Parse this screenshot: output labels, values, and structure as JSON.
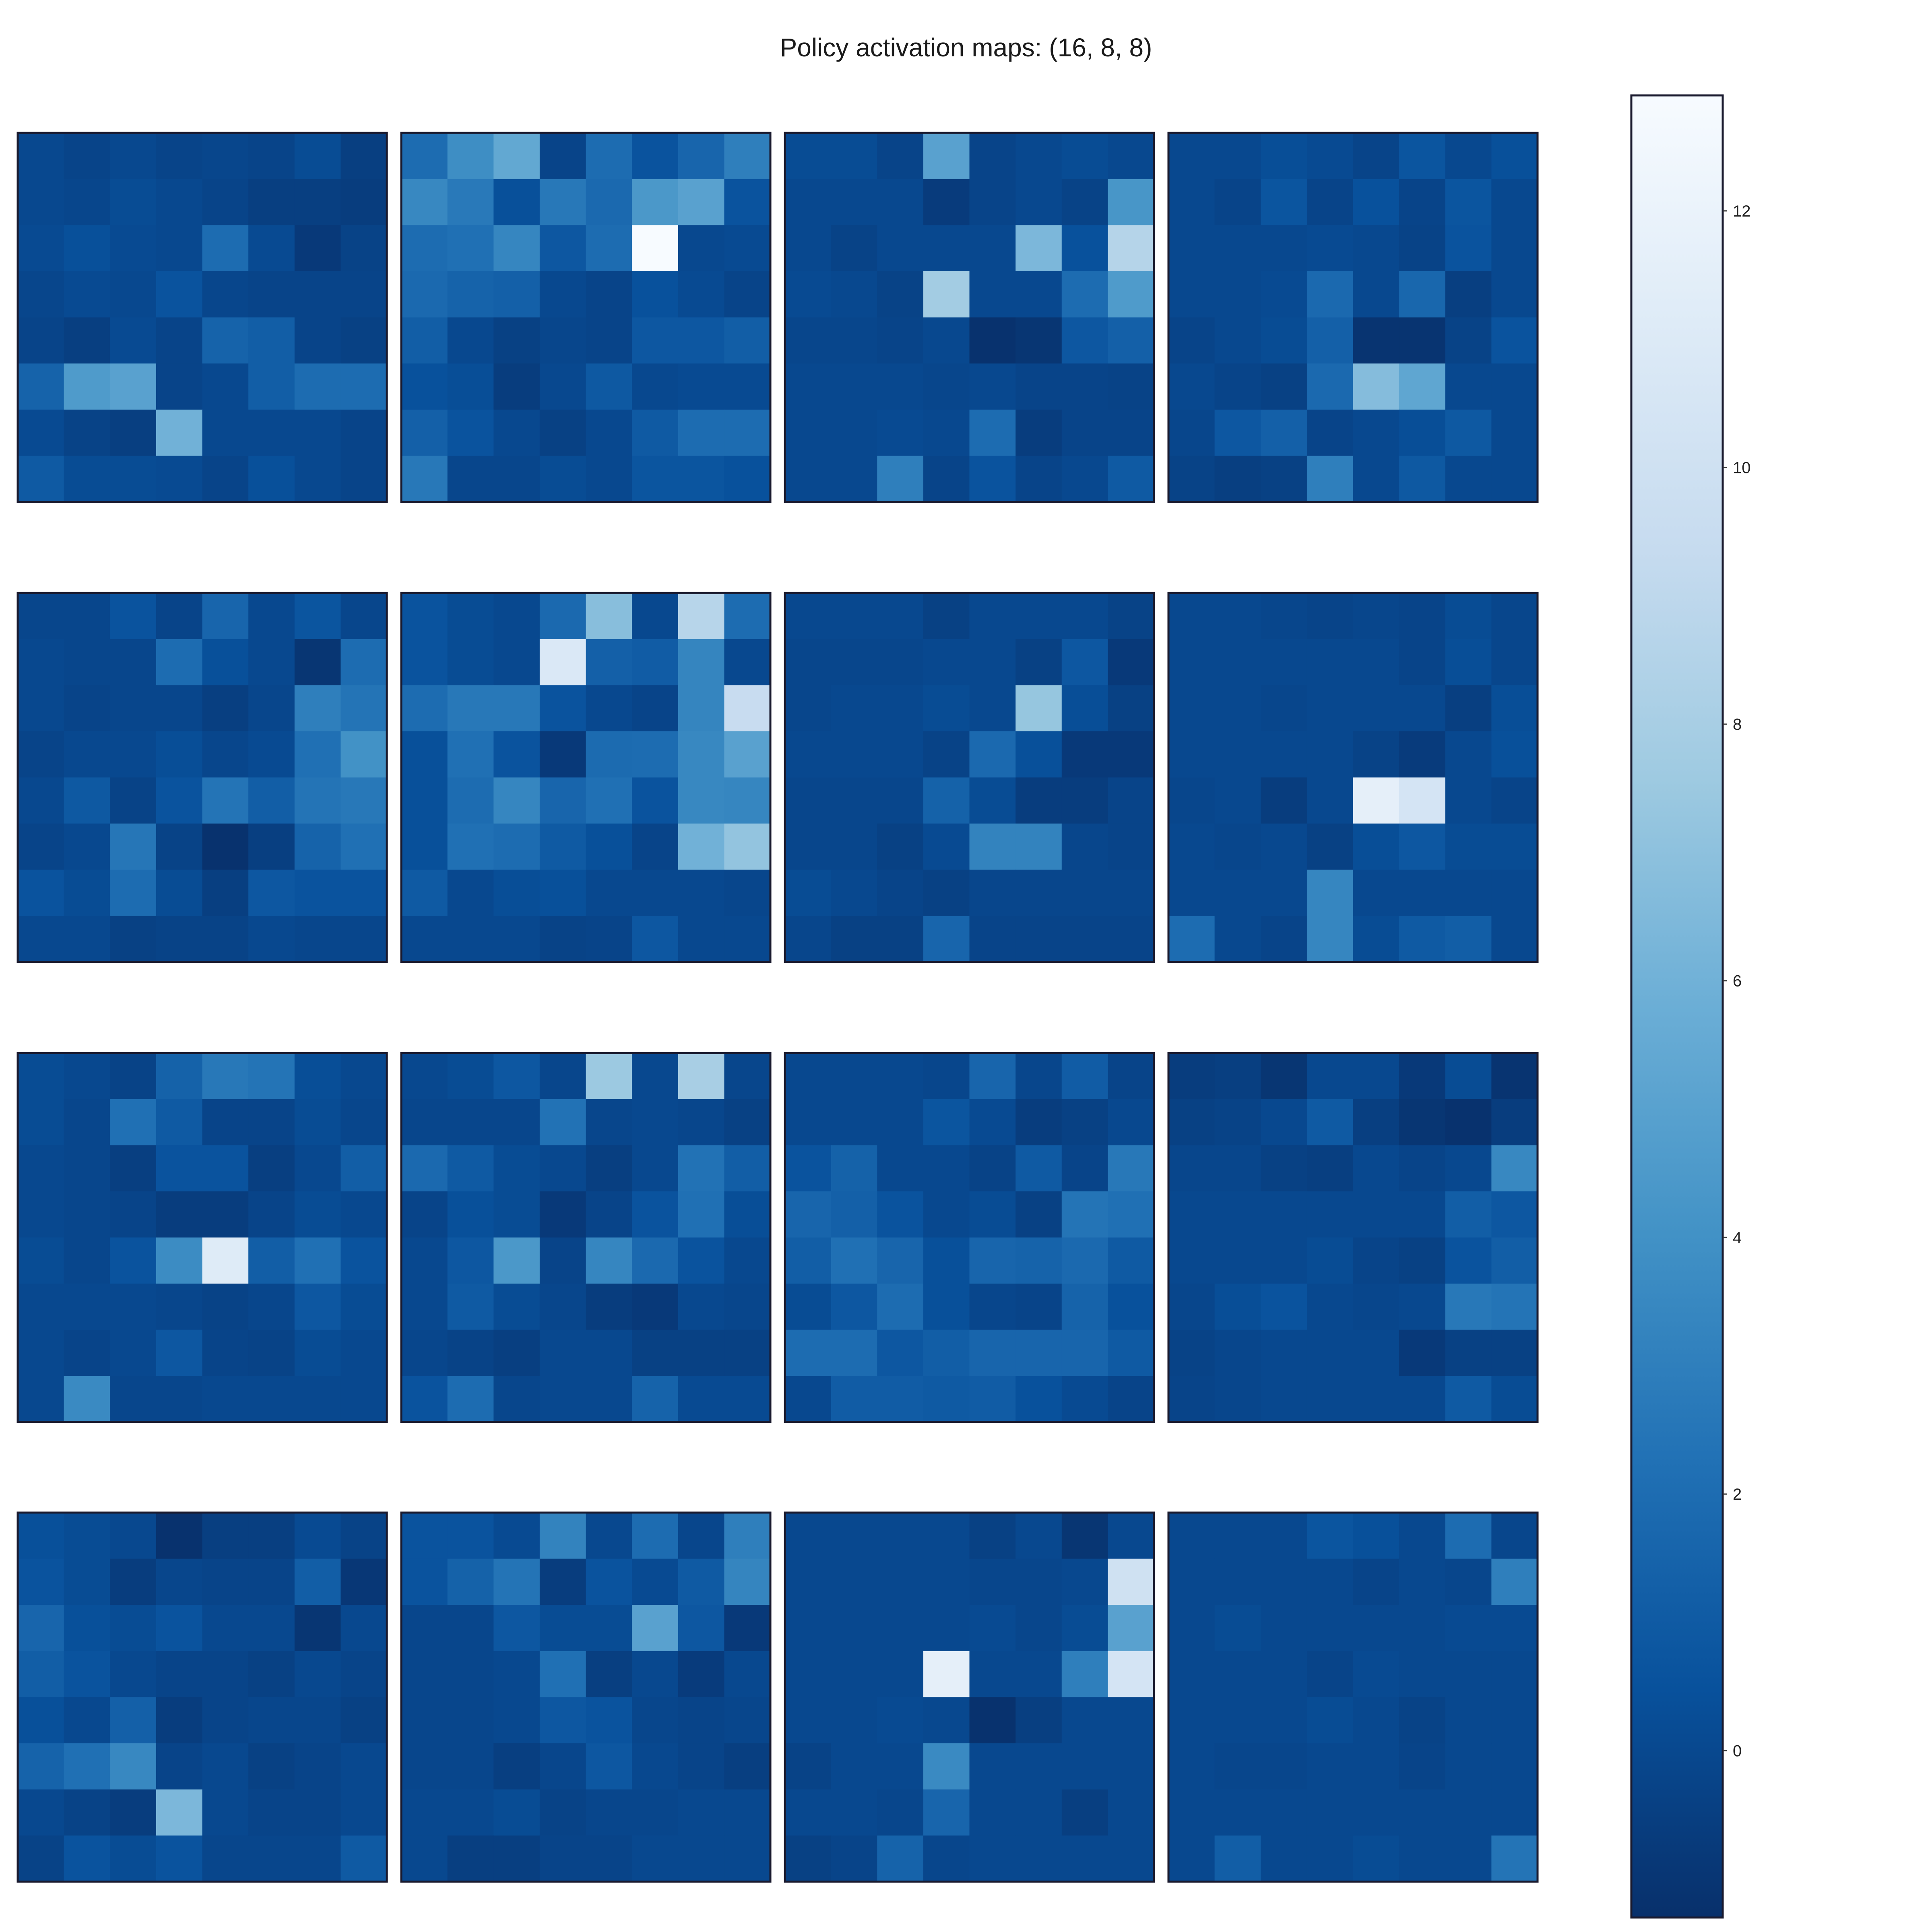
{
  "title": "Policy activation maps: (16, 8, 8)",
  "chart_data": {
    "type": "heatmap",
    "title": "Policy activation maps: (16, 8, 8)",
    "shape": [
      16,
      8,
      8
    ],
    "layout": {
      "rows": 4,
      "cols": 4
    },
    "colormap": "Blues_r",
    "colors": {
      "low": "#08306b",
      "mid": "#2171b5",
      "high": "#f7fbff",
      "frame": "#1a1a2e"
    },
    "vmin": -1.3,
    "vmax": 12.9,
    "colorbar": {
      "ticks": [
        0,
        2,
        4,
        6,
        8,
        10,
        12
      ]
    },
    "maps": [
      [
        [
          0.0,
          -0.2,
          0.0,
          -0.2,
          -0.1,
          -0.2,
          0.2,
          -0.5
        ],
        [
          0.0,
          -0.1,
          0.2,
          0.0,
          -0.2,
          -0.5,
          -0.5,
          -0.6
        ],
        [
          0.1,
          0.4,
          0.1,
          0.0,
          2.0,
          0.1,
          -0.8,
          -0.3
        ],
        [
          -0.1,
          0.1,
          0.0,
          0.6,
          -0.1,
          -0.2,
          -0.2,
          -0.2
        ],
        [
          -0.2,
          -0.5,
          0.1,
          -0.2,
          1.5,
          1.2,
          -0.2,
          -0.4
        ],
        [
          1.5,
          4.6,
          5.0,
          -0.2,
          0.0,
          1.2,
          2.0,
          2.0
        ],
        [
          0.1,
          -0.3,
          -0.5,
          6.0,
          0.0,
          0.0,
          0.0,
          -0.2
        ],
        [
          1.0,
          0.2,
          0.2,
          0.1,
          -0.2,
          0.4,
          0.0,
          -0.2
        ]
      ],
      [
        [
          2.0,
          3.8,
          5.4,
          -0.2,
          2.0,
          0.6,
          1.6,
          3.0
        ],
        [
          3.5,
          2.7,
          0.4,
          2.6,
          1.8,
          4.4,
          5.0,
          0.6
        ],
        [
          2.0,
          2.2,
          3.4,
          0.8,
          2.0,
          12.9,
          0.0,
          0.1
        ],
        [
          1.8,
          1.5,
          1.3,
          0.0,
          -0.2,
          0.5,
          0.1,
          -0.2
        ],
        [
          1.2,
          0.0,
          -0.4,
          -0.1,
          -0.2,
          0.8,
          0.8,
          1.2
        ],
        [
          0.5,
          0.3,
          -0.6,
          0.0,
          0.9,
          0.0,
          0.1,
          0.1
        ],
        [
          1.3,
          0.6,
          0.0,
          -0.4,
          0.0,
          1.0,
          2.0,
          2.0
        ],
        [
          2.6,
          -0.1,
          -0.1,
          0.2,
          0.0,
          0.7,
          0.7,
          0.5
        ]
      ],
      [
        [
          0.2,
          0.2,
          -0.2,
          5.0,
          -0.2,
          0.0,
          0.2,
          0.0
        ],
        [
          0.0,
          0.0,
          0.0,
          -0.7,
          -0.2,
          0.0,
          -0.3,
          4.3
        ],
        [
          0.0,
          -0.3,
          0.0,
          0.0,
          0.0,
          6.4,
          0.5,
          8.6
        ],
        [
          0.1,
          0.0,
          -0.3,
          7.8,
          0.0,
          0.0,
          2.0,
          4.6
        ],
        [
          -0.1,
          -0.1,
          -0.2,
          0.0,
          -1.2,
          -1.0,
          0.8,
          1.3
        ],
        [
          0.0,
          0.0,
          0.0,
          -0.1,
          0.0,
          -0.2,
          -0.2,
          -0.3
        ],
        [
          0.0,
          0.0,
          0.1,
          0.0,
          2.0,
          -0.6,
          -0.2,
          -0.2
        ],
        [
          0.0,
          0.0,
          3.0,
          -0.2,
          0.6,
          -0.2,
          0.0,
          1.0
        ]
      ],
      [
        [
          0.0,
          0.0,
          0.3,
          0.1,
          -0.2,
          0.7,
          0.0,
          0.4
        ],
        [
          0.0,
          -0.2,
          0.7,
          -0.2,
          0.5,
          -0.2,
          0.7,
          0.0
        ],
        [
          0.0,
          0.0,
          0.0,
          0.1,
          0.0,
          -0.3,
          0.6,
          0.0
        ],
        [
          0.0,
          0.0,
          0.1,
          1.8,
          0.0,
          1.7,
          -0.5,
          0.0
        ],
        [
          -0.2,
          0.0,
          0.2,
          1.3,
          -1.1,
          -1.1,
          -0.3,
          0.6
        ],
        [
          0.0,
          -0.2,
          -0.4,
          1.8,
          6.7,
          5.3,
          0.0,
          0.0
        ],
        [
          -0.1,
          0.8,
          1.3,
          -0.2,
          0.0,
          0.3,
          0.9,
          0.0
        ],
        [
          -0.3,
          -0.5,
          -0.4,
          3.0,
          0.0,
          0.9,
          0.0,
          0.0
        ]
      ],
      [
        [
          -0.1,
          -0.1,
          0.6,
          -0.2,
          1.6,
          0.0,
          0.7,
          -0.1
        ],
        [
          0.0,
          -0.1,
          -0.1,
          2.0,
          0.4,
          0.0,
          -1.0,
          2.0
        ],
        [
          0.0,
          -0.2,
          -0.1,
          -0.1,
          -0.5,
          -0.1,
          3.0,
          2.4
        ],
        [
          -0.2,
          0.0,
          0.0,
          0.3,
          -0.1,
          0.1,
          2.2,
          4.0
        ],
        [
          0.0,
          0.9,
          -0.3,
          0.6,
          2.4,
          1.2,
          2.4,
          2.6
        ],
        [
          -0.2,
          0.0,
          2.5,
          -0.3,
          -1.2,
          -0.5,
          1.5,
          2.2
        ],
        [
          0.6,
          0.2,
          2.0,
          0.2,
          -0.5,
          0.8,
          0.6,
          0.6
        ],
        [
          0.0,
          0.0,
          -0.4,
          -0.3,
          -0.3,
          0.0,
          -0.1,
          -0.1
        ]
      ],
      [
        [
          0.6,
          0.2,
          0.0,
          1.8,
          6.8,
          0.0,
          8.7,
          2.0
        ],
        [
          0.6,
          0.2,
          0.0,
          10.8,
          1.3,
          1.1,
          3.3,
          0.0
        ],
        [
          2.0,
          2.6,
          2.6,
          0.6,
          0.0,
          -0.2,
          3.3,
          9.5
        ],
        [
          0.4,
          2.2,
          0.6,
          -0.8,
          1.9,
          2.0,
          3.5,
          5.0
        ],
        [
          0.4,
          2.0,
          3.4,
          1.6,
          2.2,
          0.6,
          3.5,
          3.4
        ],
        [
          0.4,
          2.2,
          2.0,
          1.0,
          0.4,
          -0.2,
          6.0,
          7.2
        ],
        [
          1.0,
          0.0,
          0.3,
          0.4,
          0.0,
          0.0,
          0.0,
          -0.1
        ],
        [
          0.0,
          0.0,
          0.0,
          -0.3,
          -0.2,
          0.8,
          0.0,
          0.0
        ]
      ],
      [
        [
          0.0,
          0.0,
          0.0,
          -0.4,
          0.0,
          0.0,
          0.0,
          -0.3
        ],
        [
          -0.1,
          -0.1,
          -0.1,
          0.0,
          0.0,
          -0.4,
          0.8,
          -0.8
        ],
        [
          -0.1,
          0.0,
          0.0,
          0.2,
          0.0,
          7.3,
          0.3,
          -0.4
        ],
        [
          0.0,
          0.0,
          0.0,
          -0.3,
          1.8,
          0.4,
          -0.8,
          -0.8
        ],
        [
          -0.1,
          -0.1,
          -0.1,
          1.4,
          0.2,
          -0.6,
          -0.6,
          -0.2
        ],
        [
          -0.1,
          -0.1,
          -0.4,
          0.1,
          3.2,
          3.2,
          -0.1,
          -0.2
        ],
        [
          0.2,
          0.0,
          -0.2,
          -0.4,
          -0.1,
          -0.1,
          -0.1,
          -0.1
        ],
        [
          -0.1,
          -0.4,
          -0.4,
          1.6,
          -0.2,
          -0.2,
          -0.2,
          -0.2
        ]
      ],
      [
        [
          0.0,
          0.0,
          -0.1,
          -0.2,
          -0.1,
          -0.2,
          0.2,
          -0.1
        ],
        [
          0.0,
          0.0,
          0.0,
          0.0,
          0.0,
          -0.2,
          0.3,
          -0.1
        ],
        [
          0.0,
          0.0,
          -0.1,
          0.0,
          0.0,
          0.0,
          -0.5,
          0.3
        ],
        [
          0.0,
          0.0,
          0.0,
          0.0,
          -0.3,
          -0.7,
          0.0,
          0.4
        ],
        [
          -0.1,
          0.0,
          -0.6,
          0.0,
          11.6,
          10.4,
          0.0,
          -0.2
        ],
        [
          0.0,
          -0.1,
          0.0,
          -0.4,
          0.3,
          0.8,
          0.2,
          0.2
        ],
        [
          0.0,
          0.0,
          0.0,
          3.4,
          0.0,
          0.0,
          0.0,
          0.0
        ],
        [
          2.0,
          0.0,
          -0.2,
          3.4,
          0.2,
          1.0,
          1.2,
          0.0
        ]
      ],
      [
        [
          0.2,
          0.0,
          -0.3,
          1.4,
          2.6,
          2.4,
          0.3,
          0.0
        ],
        [
          0.2,
          -0.1,
          2.2,
          1.0,
          -0.2,
          -0.2,
          0.2,
          -0.1
        ],
        [
          0.0,
          -0.1,
          -0.5,
          0.6,
          0.6,
          -0.5,
          0.0,
          1.2
        ],
        [
          0.0,
          -0.1,
          -0.2,
          -0.6,
          -0.6,
          -0.2,
          0.2,
          0.0
        ],
        [
          0.2,
          -0.1,
          0.6,
          3.7,
          11.1,
          1.2,
          2.2,
          0.6
        ],
        [
          0.0,
          0.0,
          0.0,
          -0.1,
          -0.3,
          -0.1,
          0.8,
          0.2
        ],
        [
          0.0,
          -0.2,
          0.0,
          0.8,
          -0.2,
          -0.3,
          0.2,
          0.0
        ],
        [
          0.0,
          3.6,
          -0.1,
          -0.1,
          0.0,
          0.0,
          0.0,
          0.0
        ]
      ],
      [
        [
          0.0,
          0.2,
          0.8,
          -0.1,
          7.5,
          0.0,
          8.0,
          -0.1
        ],
        [
          -0.1,
          -0.1,
          -0.1,
          2.3,
          -0.1,
          0.0,
          -0.1,
          -0.4
        ],
        [
          1.8,
          1.0,
          0.2,
          0.0,
          -0.5,
          0.0,
          2.3,
          1.2
        ],
        [
          -0.2,
          0.4,
          0.2,
          -0.8,
          -0.2,
          0.6,
          2.2,
          0.3
        ],
        [
          0.0,
          0.8,
          4.4,
          -0.2,
          3.4,
          1.8,
          0.6,
          0.0
        ],
        [
          0.0,
          1.0,
          0.2,
          -0.1,
          -0.6,
          -0.8,
          0.0,
          -0.1
        ],
        [
          -0.1,
          -0.3,
          -0.5,
          0.0,
          0.0,
          -0.4,
          -0.4,
          -0.4
        ],
        [
          0.6,
          2.0,
          -0.1,
          0.0,
          0.0,
          1.5,
          0.1,
          0.1
        ]
      ],
      [
        [
          0.0,
          0.0,
          0.0,
          -0.1,
          1.6,
          -0.1,
          1.1,
          -0.2
        ],
        [
          0.0,
          0.0,
          0.0,
          0.7,
          0.1,
          -0.6,
          -0.4,
          0.0
        ],
        [
          0.6,
          1.4,
          0.0,
          0.0,
          -0.3,
          1.0,
          -0.2,
          2.6
        ],
        [
          1.6,
          1.3,
          0.6,
          0.0,
          0.2,
          -0.4,
          2.4,
          2.2
        ],
        [
          1.2,
          2.2,
          1.6,
          0.4,
          1.6,
          1.5,
          1.8,
          1.0
        ],
        [
          0.2,
          0.8,
          2.0,
          0.4,
          -0.1,
          -0.2,
          1.5,
          0.5
        ],
        [
          2.0,
          2.0,
          0.8,
          1.2,
          1.6,
          1.6,
          1.6,
          1.0
        ],
        [
          0.0,
          1.1,
          1.1,
          1.0,
          1.1,
          0.5,
          0.1,
          -0.2
        ]
      ],
      [
        [
          -0.6,
          -0.5,
          -1.0,
          0.0,
          0.0,
          -0.8,
          0.2,
          -1.1
        ],
        [
          -0.4,
          -0.3,
          0.0,
          1.0,
          -0.5,
          -1.0,
          -1.2,
          -0.6
        ],
        [
          -0.1,
          -0.1,
          -0.4,
          -0.5,
          0.0,
          -0.2,
          0.0,
          3.5
        ],
        [
          0.0,
          0.0,
          0.0,
          0.0,
          0.0,
          0.0,
          1.2,
          0.8
        ],
        [
          0.0,
          0.0,
          0.0,
          0.2,
          -0.2,
          -0.4,
          0.6,
          1.2
        ],
        [
          -0.1,
          0.3,
          0.6,
          0.0,
          -0.1,
          0.0,
          2.6,
          2.4
        ],
        [
          -0.3,
          -0.1,
          0.0,
          0.0,
          0.0,
          -0.8,
          -0.4,
          -0.4
        ],
        [
          -0.2,
          -0.1,
          0.0,
          0.0,
          0.0,
          0.0,
          1.0,
          0.2
        ]
      ],
      [
        [
          0.4,
          0.2,
          0.0,
          -1.2,
          -0.5,
          -0.5,
          0.1,
          -0.3
        ],
        [
          0.6,
          0.2,
          -0.6,
          -0.1,
          -0.2,
          -0.2,
          1.2,
          -0.9
        ],
        [
          1.6,
          0.4,
          0.2,
          0.6,
          0.0,
          0.0,
          -1.0,
          0.0
        ],
        [
          1.2,
          0.6,
          0.0,
          -0.2,
          -0.2,
          -0.4,
          0.0,
          -0.2
        ],
        [
          0.4,
          0.0,
          1.3,
          -0.6,
          -0.2,
          -0.1,
          -0.1,
          -0.4
        ],
        [
          1.5,
          2.2,
          3.5,
          -0.2,
          0.0,
          -0.4,
          -0.2,
          0.0
        ],
        [
          0.0,
          -0.3,
          -0.6,
          6.4,
          0.0,
          -0.2,
          -0.2,
          0.0
        ],
        [
          -0.3,
          0.6,
          0.2,
          0.6,
          -0.1,
          -0.1,
          -0.1,
          1.0
        ]
      ],
      [
        [
          0.6,
          0.6,
          0.1,
          3.2,
          0.0,
          2.0,
          -0.1,
          3.0
        ],
        [
          0.6,
          1.4,
          2.4,
          -0.6,
          0.6,
          0.1,
          1.0,
          3.3
        ],
        [
          -0.1,
          -0.1,
          0.8,
          0.2,
          0.2,
          5.0,
          0.8,
          -0.8
        ],
        [
          -0.1,
          -0.1,
          0.0,
          2.2,
          -0.5,
          0.0,
          -0.7,
          0.0
        ],
        [
          -0.1,
          -0.1,
          0.0,
          0.8,
          0.6,
          -0.1,
          -0.2,
          -0.1
        ],
        [
          -0.1,
          -0.1,
          -0.5,
          -0.1,
          0.8,
          0.0,
          -0.2,
          -0.5
        ],
        [
          0.0,
          0.0,
          0.2,
          -0.3,
          -0.1,
          -0.1,
          0.0,
          0.0
        ],
        [
          0.0,
          -0.5,
          -0.5,
          -0.2,
          -0.2,
          0.0,
          0.0,
          0.0
        ]
      ],
      [
        [
          0.0,
          0.0,
          0.0,
          0.0,
          -0.4,
          0.0,
          -1.0,
          0.0
        ],
        [
          0.0,
          0.0,
          0.0,
          0.0,
          -0.1,
          -0.1,
          0.0,
          10.0
        ],
        [
          0.0,
          0.0,
          0.0,
          0.0,
          0.1,
          -0.1,
          0.2,
          5.0
        ],
        [
          0.0,
          0.0,
          0.0,
          11.6,
          0.0,
          0.0,
          3.0,
          10.4
        ],
        [
          0.0,
          0.0,
          0.1,
          0.0,
          -1.2,
          -0.5,
          0.0,
          0.0
        ],
        [
          -0.3,
          0.0,
          0.0,
          3.6,
          0.0,
          0.0,
          0.0,
          0.0
        ],
        [
          0.0,
          0.0,
          -0.1,
          1.6,
          0.0,
          0.0,
          -0.5,
          0.0
        ],
        [
          -0.4,
          -0.2,
          1.5,
          -0.1,
          0.0,
          0.0,
          0.0,
          0.0
        ]
      ],
      [
        [
          0.0,
          0.0,
          0.0,
          0.7,
          0.4,
          0.0,
          2.0,
          -0.1
        ],
        [
          0.0,
          0.0,
          0.0,
          0.0,
          -0.2,
          0.0,
          -0.1,
          3.0
        ],
        [
          0.0,
          0.2,
          0.0,
          0.0,
          0.0,
          0.0,
          0.1,
          0.1
        ],
        [
          0.0,
          0.0,
          0.0,
          -0.2,
          0.1,
          0.0,
          0.0,
          0.0
        ],
        [
          0.0,
          0.0,
          0.0,
          0.2,
          0.0,
          -0.3,
          0.0,
          0.0
        ],
        [
          0.0,
          -0.1,
          -0.1,
          0.0,
          0.0,
          -0.2,
          0.0,
          0.0
        ],
        [
          0.0,
          0.0,
          0.0,
          0.0,
          0.0,
          0.0,
          0.0,
          0.0
        ],
        [
          0.0,
          1.2,
          0.0,
          0.0,
          0.2,
          0.0,
          0.0,
          2.4
        ]
      ]
    ]
  }
}
